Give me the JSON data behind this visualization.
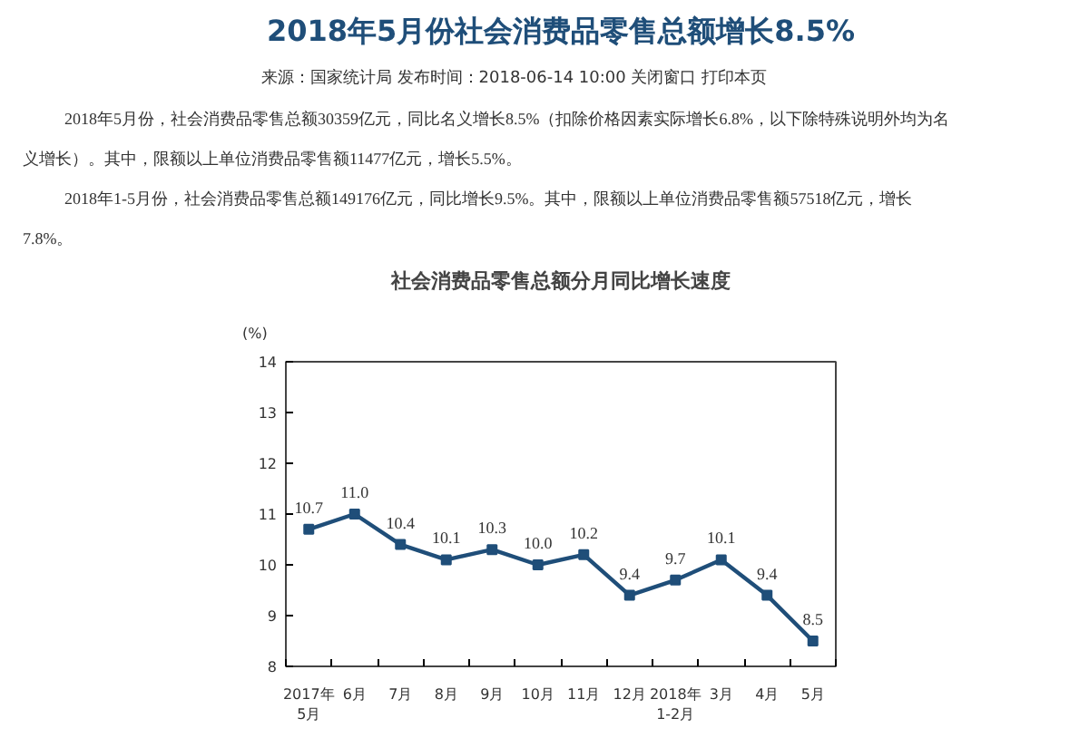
{
  "chart_data": {
    "type": "line",
    "title": "社会消费品零售总额分月同比增长速度",
    "ylabel": "(%)",
    "annotations": [
      "2018年5月份社会消费品零售总额增长8.5%",
      "来源：国家统计局",
      "发布时间：2018-06-14 10:00",
      "关闭窗口 打印本页",
      "2018年5月份，社会消费品零售总额30359亿元，同比名义增长8.5%（扣除价格因素实际增长6.8%，以下除特殊说明外均为名",
      "义增长）。其中，限额以上单位消费品零售额11477亿元，增长5.5%。",
      "2018年1-5月份，社会消费品零售总额149176亿元，同比增长9.5%。其中，限额以上单位消费品零售额57518亿元，增长",
      "7.8%。"
    ],
    "categories": [
      "2017年\n5月",
      "6月",
      "7月",
      "8月",
      "9月",
      "10月",
      "11月",
      "12月",
      "2018年\n1-2月",
      "3月",
      "4月",
      "5月"
    ],
    "series": [
      {
        "color": "#1f4e79",
        "values": [
          10.7,
          11.0,
          10.4,
          10.1,
          10.3,
          10.0,
          10.2,
          9.4,
          9.7,
          10.1,
          9.4,
          8.5
        ],
        "value_labels": [
          "10.7",
          "11.0",
          "10.4",
          "10.1",
          "10.3",
          "10.0",
          "10.2",
          "9.4",
          "9.7",
          "10.1",
          "9.4",
          "8.5"
        ]
      }
    ],
    "ylim": [
      8,
      14
    ],
    "yticks": [
      8,
      9,
      10,
      11,
      12,
      13,
      14
    ],
    "grid": false,
    "marker": "square",
    "line_style": "solid"
  }
}
